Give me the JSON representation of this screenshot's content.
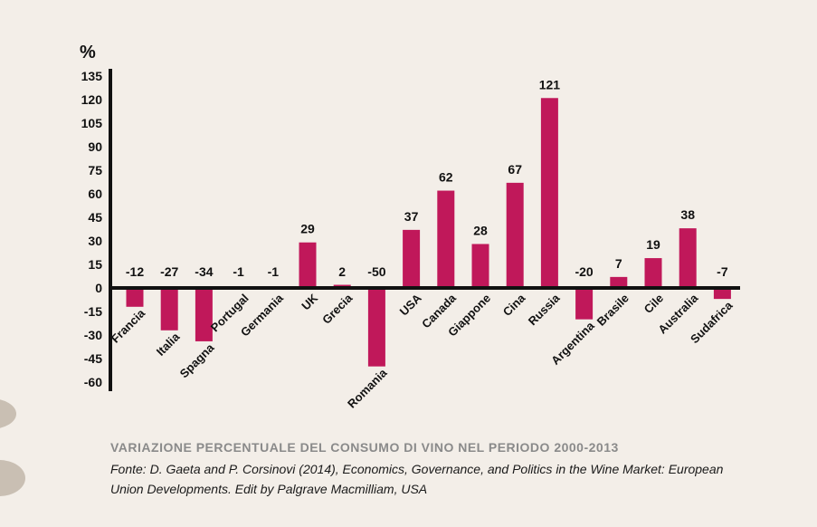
{
  "chart_data": {
    "type": "bar",
    "unit_label": "%",
    "categories": [
      "Francia",
      "Italia",
      "Spagna",
      "Portugal",
      "Germania",
      "UK",
      "Grecia",
      "Romania",
      "USA",
      "Canada",
      "Giappone",
      "Cina",
      "Russia",
      "Argentina",
      "Brasile",
      "Cile",
      "Australia",
      "Sudafrica"
    ],
    "values": [
      -12,
      -27,
      -34,
      -1,
      -1,
      29,
      2,
      -50,
      37,
      62,
      28,
      67,
      121,
      -20,
      7,
      19,
      38,
      -7
    ],
    "value_labels": [
      "-12",
      "-27",
      "-34",
      "-1",
      "-1",
      "29",
      "2",
      "-50",
      "37",
      "62",
      "28",
      "67",
      "121",
      "-20",
      "7",
      "19",
      "38",
      "-7"
    ],
    "y_ticks": [
      135,
      120,
      105,
      90,
      75,
      60,
      45,
      30,
      15,
      0,
      -15,
      -30,
      -45,
      -60
    ],
    "ylim": [
      -65,
      138
    ],
    "bar_color": "#c0185a",
    "grid": false,
    "legend": "none"
  },
  "caption": {
    "title": "VARIAZIONE PERCENTUALE DEL CONSUMO DI VINO NEL PERIODO 2000-2013",
    "source": "Fonte: D. Gaeta and P. Corsinovi (2014), Economics, Governance, and Politics in the Wine Market: European Union Developments. Edit by Palgrave Macmilliam, USA"
  }
}
